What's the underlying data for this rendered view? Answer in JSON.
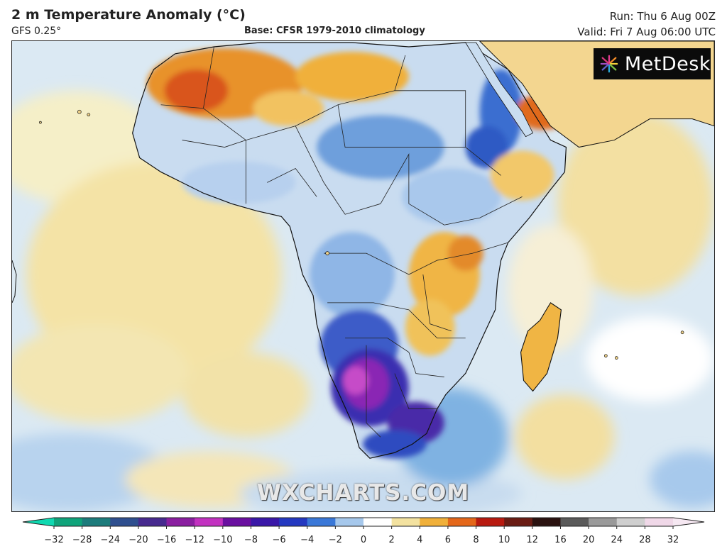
{
  "header": {
    "title": "2 m Temperature Anomaly (°C)",
    "model": "GFS 0.25°",
    "base": "Base: CFSR 1979-2010 climatology",
    "run": "Run: Thu 6 Aug 00Z",
    "valid": "Valid: Fri 7 Aug 06:00 UTC"
  },
  "logo": {
    "text": "MetDesk",
    "icon": "metdesk-sunburst-icon"
  },
  "watermark": "WXCHARTS.COM",
  "colorbar": {
    "ticks": [
      "−32",
      "−28",
      "−24",
      "−20",
      "−16",
      "−12",
      "−10",
      "−8",
      "−6",
      "−4",
      "−2",
      "0",
      "2",
      "4",
      "6",
      "8",
      "10",
      "12",
      "16",
      "20",
      "24",
      "28",
      "32"
    ],
    "colors": [
      "#0fa37a",
      "#1d7c7c",
      "#2f4f8f",
      "#472a8f",
      "#8a1fa0",
      "#c232c0",
      "#6a10a0",
      "#3a18a8",
      "#2438c0",
      "#3a78d8",
      "#a6c8ec",
      "#ffffff",
      "#f3e2a0",
      "#f0b03a",
      "#e4671a",
      "#b81a10",
      "#6a1c14",
      "#2a1210",
      "#5a5a5a",
      "#9a9a9a",
      "#cfcfcf",
      "#f0d8e8"
    ]
  }
}
